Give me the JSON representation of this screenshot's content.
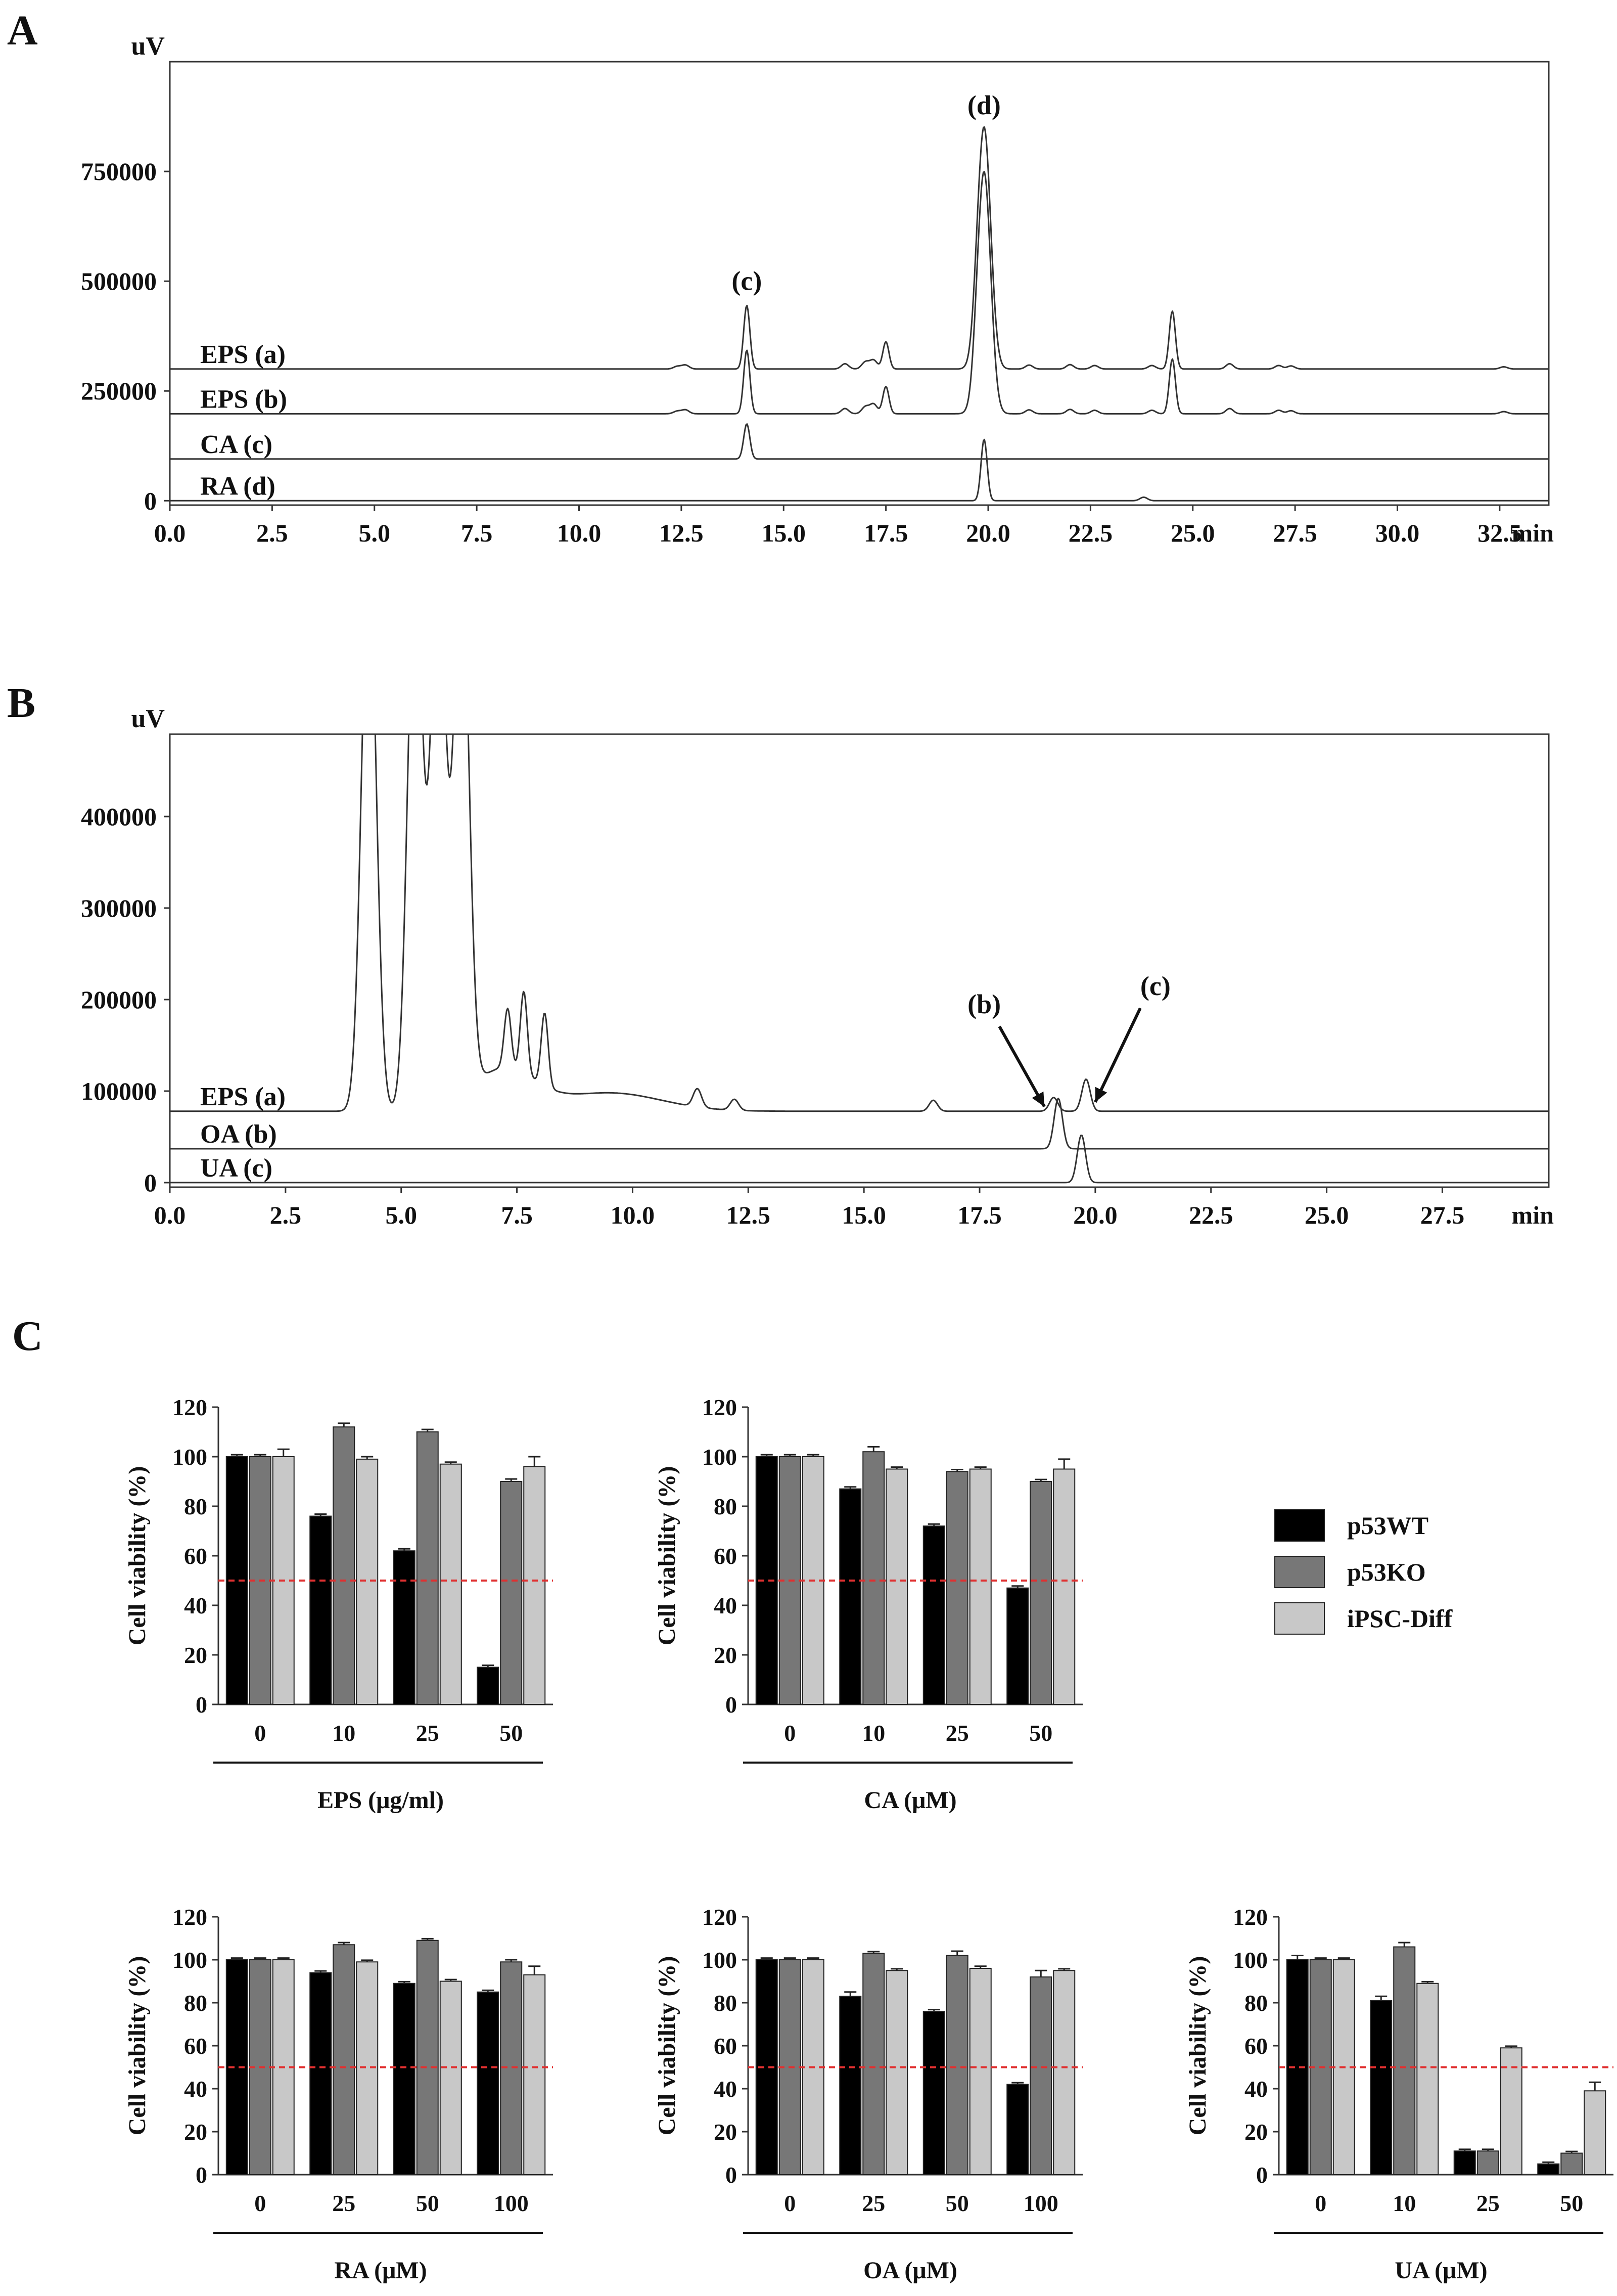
{
  "panels": {
    "A": "A",
    "B": "B",
    "C": "C"
  },
  "colors": {
    "p53WT": "#000000",
    "p53KO": "#777777",
    "iPSC-Diff": "#c8c8c8",
    "threshold": "#e03030",
    "trace": "#333333"
  },
  "chart_data": [
    {
      "id": "A",
      "type": "line",
      "title": "",
      "xlabel": "min",
      "ylabel": "uV",
      "xlim": [
        0,
        33.7
      ],
      "ylim": [
        -10000,
        1000000
      ],
      "grid": false,
      "x_ticks": [
        "0.0",
        "2.5",
        "5.0",
        "7.5",
        "10.0",
        "12.5",
        "15.0",
        "17.5",
        "20.0",
        "22.5",
        "25.0",
        "27.5",
        "30.0",
        "32.5"
      ],
      "y_ticks": [
        "0",
        "250000",
        "500000",
        "750000"
      ],
      "series": [
        {
          "name": "EPS (a)",
          "baseline": 300000,
          "peaks": [
            [
              12.4,
              6000
            ],
            [
              12.6,
              9000
            ],
            [
              14.1,
              145000
            ],
            [
              16.5,
              12000
            ],
            [
              17.0,
              16000
            ],
            [
              17.2,
              20000
            ],
            [
              17.5,
              62000
            ],
            [
              19.7,
              25000
            ],
            [
              19.9,
              550000
            ],
            [
              21.0,
              9000
            ],
            [
              22.0,
              10000
            ],
            [
              22.6,
              8000
            ],
            [
              24.0,
              8000
            ],
            [
              24.5,
              132000
            ],
            [
              25.9,
              12000
            ],
            [
              27.1,
              8000
            ],
            [
              27.4,
              7000
            ],
            [
              32.6,
              5000
            ]
          ]
        },
        {
          "name": "EPS (b)",
          "baseline": 198000,
          "peaks": [
            [
              12.4,
              6000
            ],
            [
              12.6,
              9000
            ],
            [
              14.1,
              145000
            ],
            [
              16.5,
              12000
            ],
            [
              17.0,
              16000
            ],
            [
              17.2,
              22000
            ],
            [
              17.5,
              62000
            ],
            [
              19.7,
              25000
            ],
            [
              19.9,
              550000
            ],
            [
              21.0,
              9000
            ],
            [
              22.0,
              10000
            ],
            [
              22.6,
              8000
            ],
            [
              24.0,
              8000
            ],
            [
              24.5,
              125000
            ],
            [
              25.9,
              12000
            ],
            [
              27.1,
              8000
            ],
            [
              27.4,
              7000
            ],
            [
              32.6,
              5000
            ]
          ]
        },
        {
          "name": "CA (c)",
          "baseline": 95000,
          "peaks": [
            [
              14.1,
              80000
            ]
          ]
        },
        {
          "name": "RA (d)",
          "baseline": 0,
          "peaks": [
            [
              19.9,
              140000
            ],
            [
              23.8,
              8000
            ]
          ]
        }
      ],
      "annotations": [
        {
          "text": "(c)",
          "x": 14.1,
          "y": 480000
        },
        {
          "text": "(d)",
          "x": 19.9,
          "y": 880000
        }
      ]
    },
    {
      "id": "B",
      "type": "line",
      "title": "",
      "xlabel": "min",
      "ylabel": "uV",
      "xlim": [
        0,
        29.8
      ],
      "ylim": [
        -5000,
        490000
      ],
      "grid": false,
      "x_ticks": [
        "0.0",
        "2.5",
        "5.0",
        "7.5",
        "10.0",
        "12.5",
        "15.0",
        "17.5",
        "20.0",
        "22.5",
        "25.0",
        "27.5",
        "min"
      ],
      "y_ticks": [
        "0",
        "100000",
        "200000",
        "300000",
        "400000"
      ],
      "series": [
        {
          "name": "EPS (a)",
          "baseline": 78000,
          "peaks": [
            [
              4.3,
              600000
            ],
            [
              5.3,
              600000
            ],
            [
              5.8,
              600000
            ],
            [
              6.3,
              600000
            ],
            [
              7.3,
              65000
            ],
            [
              7.65,
              90000
            ],
            [
              8.1,
              80000
            ],
            [
              11.4,
              20000
            ],
            [
              12.2,
              12000
            ],
            [
              16.5,
              12000
            ],
            [
              19.1,
              15000
            ],
            [
              19.8,
              35000
            ]
          ]
        },
        {
          "name": "OA (b)",
          "baseline": 37000,
          "peaks": [
            [
              19.2,
              55000
            ]
          ]
        },
        {
          "name": "UA (c)",
          "baseline": 0,
          "peaks": [
            [
              19.7,
              52000
            ]
          ]
        }
      ],
      "annotations": [
        {
          "text": "(b)",
          "x": 18.9,
          "y": 83000,
          "label_x": 17.6,
          "label_y": 185000
        },
        {
          "text": "(c)",
          "x": 20.0,
          "y": 88000,
          "label_x": 21.3,
          "label_y": 205000
        }
      ]
    },
    {
      "id": "C",
      "type": "bar",
      "ylabel": "Cell viability (%)",
      "ylim": [
        0,
        120
      ],
      "y_ticks": [
        "0",
        "20",
        "40",
        "60",
        "80",
        "100",
        "120"
      ],
      "threshold": 50,
      "legend_position": "right",
      "series_names": [
        "p53WT",
        "p53KO",
        "iPSC-Diff"
      ],
      "subplots": [
        {
          "xlabel": "EPS (μg/ml)",
          "categories": [
            "0",
            "10",
            "25",
            "50"
          ],
          "series": [
            {
              "name": "p53WT",
              "values": [
                100,
                76,
                62,
                15
              ],
              "errors": [
                0,
                0,
                0,
                0
              ]
            },
            {
              "name": "p53KO",
              "values": [
                100,
                112,
                110,
                90
              ],
              "errors": [
                0,
                1.5,
                1,
                1
              ]
            },
            {
              "name": "iPSC-Diff",
              "values": [
                100,
                99,
                97,
                96
              ],
              "errors": [
                3,
                1,
                0,
                4
              ]
            }
          ]
        },
        {
          "xlabel": "CA (μM)",
          "categories": [
            "0",
            "10",
            "25",
            "50"
          ],
          "series": [
            {
              "name": "p53WT",
              "values": [
                100,
                87,
                72,
                47
              ],
              "errors": [
                0,
                0,
                0,
                0
              ]
            },
            {
              "name": "p53KO",
              "values": [
                100,
                102,
                94,
                90
              ],
              "errors": [
                0,
                2,
                0,
                0
              ]
            },
            {
              "name": "iPSC-Diff",
              "values": [
                100,
                95,
                95,
                95
              ],
              "errors": [
                0,
                0,
                0,
                4
              ]
            }
          ]
        },
        {
          "xlabel": "RA (μM)",
          "categories": [
            "0",
            "25",
            "50",
            "100"
          ],
          "series": [
            {
              "name": "p53WT",
              "values": [
                100,
                94,
                89,
                85
              ],
              "errors": [
                0,
                0,
                0,
                0
              ]
            },
            {
              "name": "p53KO",
              "values": [
                100,
                107,
                109,
                99
              ],
              "errors": [
                0,
                1,
                0,
                1
              ]
            },
            {
              "name": "iPSC-Diff",
              "values": [
                100,
                99,
                90,
                93
              ],
              "errors": [
                0,
                0,
                0,
                4
              ]
            }
          ]
        },
        {
          "xlabel": "OA (μM)",
          "categories": [
            "0",
            "25",
            "50",
            "100"
          ],
          "series": [
            {
              "name": "p53WT",
              "values": [
                100,
                83,
                76,
                42
              ],
              "errors": [
                0,
                2,
                0,
                0
              ]
            },
            {
              "name": "p53KO",
              "values": [
                100,
                103,
                102,
                92
              ],
              "errors": [
                0,
                0,
                2,
                3
              ]
            },
            {
              "name": "iPSC-Diff",
              "values": [
                100,
                95,
                96,
                95
              ],
              "errors": [
                0,
                0,
                1,
                0
              ]
            }
          ]
        },
        {
          "xlabel": "UA (μM)",
          "categories": [
            "0",
            "10",
            "25",
            "50"
          ],
          "series": [
            {
              "name": "p53WT",
              "values": [
                100,
                81,
                11,
                5
              ],
              "errors": [
                2,
                2,
                0,
                0
              ]
            },
            {
              "name": "p53KO",
              "values": [
                100,
                106,
                11,
                10
              ],
              "errors": [
                0,
                2,
                0,
                0
              ]
            },
            {
              "name": "iPSC-Diff",
              "values": [
                100,
                89,
                59,
                39
              ],
              "errors": [
                0,
                0,
                0,
                4
              ]
            }
          ]
        }
      ]
    }
  ]
}
